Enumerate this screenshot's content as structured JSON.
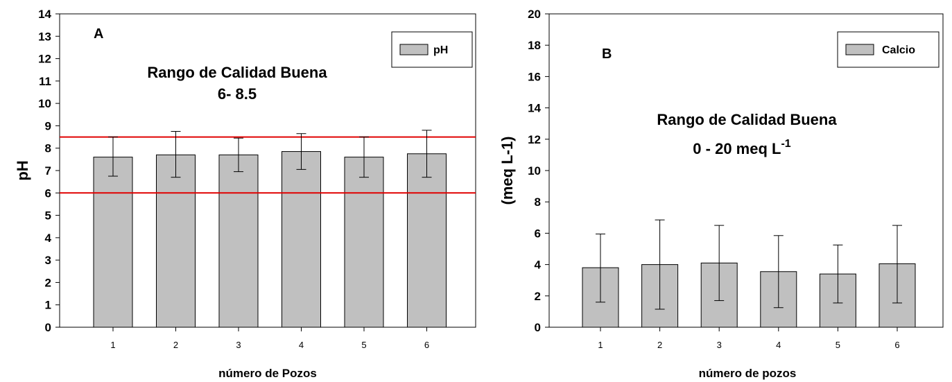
{
  "chart_data": [
    {
      "type": "bar",
      "panel_label": "A",
      "categories": [
        "1",
        "2",
        "3",
        "4",
        "5",
        "6"
      ],
      "series": [
        {
          "name": "pH",
          "values": [
            7.6,
            7.7,
            7.7,
            7.85,
            7.6,
            7.75
          ],
          "error_low": [
            6.75,
            6.7,
            6.95,
            7.05,
            6.7,
            6.7
          ],
          "error_high": [
            8.5,
            8.75,
            8.45,
            8.65,
            8.5,
            8.8
          ],
          "color": "#c0c0c0"
        }
      ],
      "reference_lines": [
        {
          "y": 8.5,
          "color": "#e00000"
        },
        {
          "y": 6,
          "color": "#e00000"
        }
      ],
      "annotation_lines": [
        "Rango de Calidad Buena",
        "6- 8.5"
      ],
      "xlabel": "número de Pozos",
      "ylabel": "pH",
      "ylim": [
        0,
        14
      ],
      "yticks": [
        "0",
        "1",
        "2",
        "3",
        "4",
        "5",
        "6",
        "7",
        "8",
        "9",
        "10",
        "11",
        "12",
        "13",
        "14"
      ],
      "legend": "top-right",
      "grid": false
    },
    {
      "type": "bar",
      "panel_label": "B",
      "categories": [
        "1",
        "2",
        "3",
        "4",
        "5",
        "6"
      ],
      "series": [
        {
          "name": "Calcio",
          "values": [
            3.8,
            4.0,
            4.1,
            3.55,
            3.4,
            4.05
          ],
          "error_low": [
            1.6,
            1.15,
            1.7,
            1.25,
            1.55,
            1.55
          ],
          "error_high": [
            5.95,
            6.85,
            6.5,
            5.85,
            5.25,
            6.5
          ],
          "color": "#c0c0c0"
        }
      ],
      "annotation_lines": [
        "Rango de Calidad Buena",
        "0 - 20  meq L",
        "-1"
      ],
      "xlabel": "número de pozos",
      "ylabel": "(meq L-1)",
      "ylim": [
        0,
        20
      ],
      "yticks": [
        "0",
        "2",
        "4",
        "6",
        "8",
        "10",
        "12",
        "14",
        "16",
        "18",
        "20"
      ],
      "legend": "top-right",
      "grid": false
    }
  ]
}
